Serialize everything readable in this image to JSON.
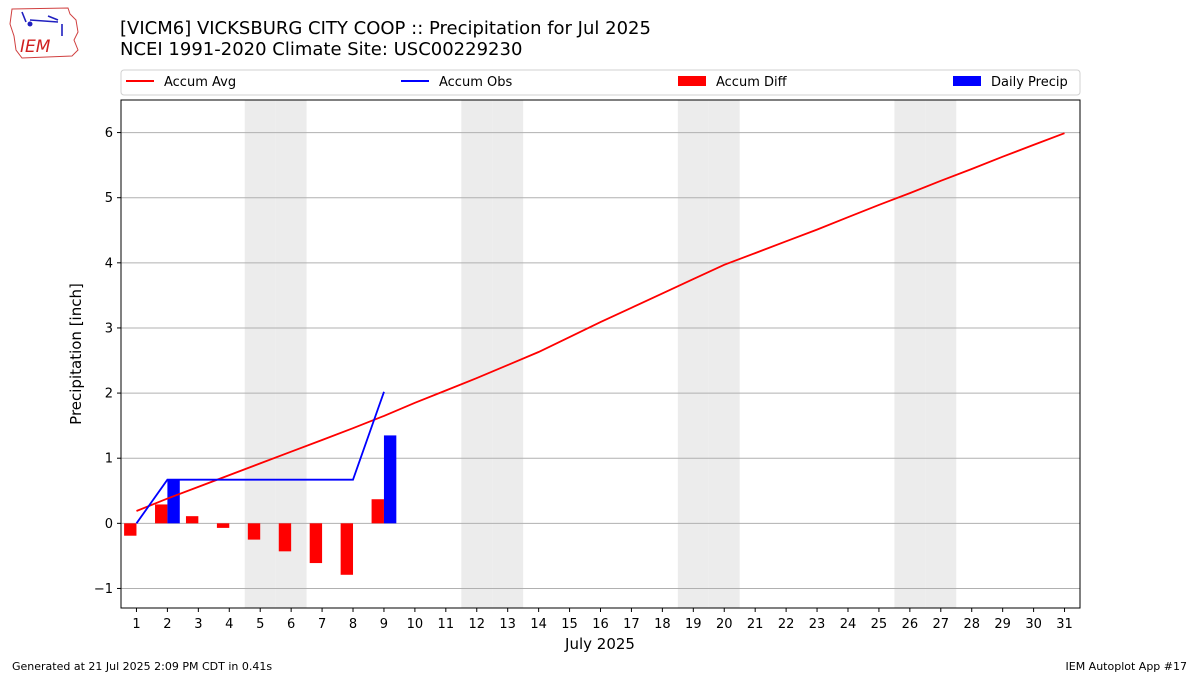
{
  "header": {
    "title_line1": "[VICM6] VICKSBURG CITY COOP :: Precipitation for Jul 2025",
    "title_line2": "NCEI 1991-2020 Climate Site: USC00229230"
  },
  "logo": {
    "text": "IEM"
  },
  "footer": {
    "generated": "Generated at 21 Jul 2025 2:09 PM CDT in 0.41s",
    "app": "IEM Autoplot App #17"
  },
  "colors": {
    "avg": "#ff0000",
    "obs": "#0000ff",
    "diff": "#ff0000",
    "daily": "#0000ff",
    "weekend": "#ececec",
    "grid": "#b0b0b0"
  },
  "chart_data": {
    "type": "bar",
    "xlabel": "July 2025",
    "ylabel": "Precipitation [inch]",
    "x": [
      1,
      2,
      3,
      4,
      5,
      6,
      7,
      8,
      9,
      10,
      11,
      12,
      13,
      14,
      15,
      16,
      17,
      18,
      19,
      20,
      21,
      22,
      23,
      24,
      25,
      26,
      27,
      28,
      29,
      30,
      31
    ],
    "xlim": [
      0.5,
      31.5
    ],
    "ylim": [
      -1.3,
      6.5
    ],
    "yticks": [
      -1,
      0,
      1,
      2,
      3,
      4,
      5,
      6
    ],
    "grid": "horizontal",
    "legend_placement": "top",
    "weekend_days": [
      5,
      6,
      12,
      13,
      19,
      20,
      26,
      27
    ],
    "series": [
      {
        "name": "Accum Avg",
        "kind": "line",
        "x": [
          1,
          2,
          3,
          4,
          5,
          6,
          7,
          8,
          9,
          10,
          11,
          12,
          13,
          14,
          15,
          16,
          17,
          18,
          19,
          20,
          21,
          22,
          23,
          24,
          25,
          26,
          27,
          28,
          29,
          30,
          31
        ],
        "values": [
          0.19,
          0.38,
          0.56,
          0.74,
          0.92,
          1.1,
          1.28,
          1.46,
          1.65,
          1.85,
          2.04,
          2.23,
          2.43,
          2.63,
          2.86,
          3.09,
          3.31,
          3.53,
          3.75,
          3.97,
          4.15,
          4.33,
          4.51,
          4.7,
          4.89,
          5.07,
          5.26,
          5.44,
          5.63,
          5.81,
          5.99
        ]
      },
      {
        "name": "Accum Obs",
        "kind": "line",
        "x": [
          1,
          2,
          3,
          4,
          5,
          6,
          7,
          8,
          9
        ],
        "values": [
          0.0,
          0.67,
          0.67,
          0.67,
          0.67,
          0.67,
          0.67,
          0.67,
          2.02
        ]
      },
      {
        "name": "Accum Diff",
        "kind": "bar",
        "x": [
          1,
          2,
          3,
          4,
          5,
          6,
          7,
          8,
          9
        ],
        "values": [
          -0.19,
          0.29,
          0.11,
          -0.07,
          -0.25,
          -0.43,
          -0.61,
          -0.79,
          0.37
        ]
      },
      {
        "name": "Daily Precip",
        "kind": "bar",
        "x": [
          2,
          9
        ],
        "values": [
          0.67,
          1.35
        ]
      }
    ]
  }
}
